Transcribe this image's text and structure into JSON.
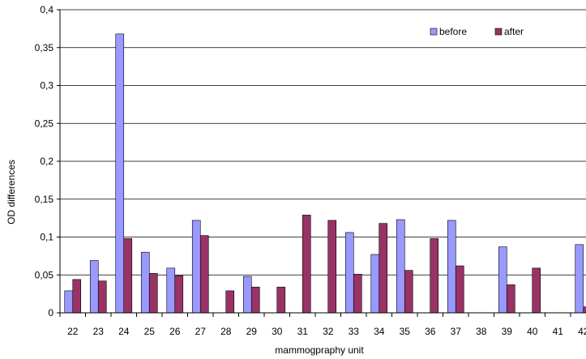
{
  "chart_data": {
    "type": "bar",
    "title": "",
    "xlabel": "mammogpraphy unit",
    "ylabel": "OD differences",
    "ylim": [
      0,
      0.4
    ],
    "yticks": [
      0,
      0.05,
      0.1,
      0.15,
      0.2,
      0.25,
      0.3,
      0.35,
      0.4
    ],
    "ytick_labels": [
      "0",
      "0,05",
      "0,1",
      "0,15",
      "0,2",
      "0,25",
      "0,3",
      "0,35",
      "0,4"
    ],
    "grid": true,
    "legend_position": "top-right",
    "categories": [
      "22",
      "23",
      "24",
      "25",
      "26",
      "27",
      "28",
      "29",
      "30",
      "31",
      "32",
      "33",
      "34",
      "35",
      "36",
      "37",
      "38",
      "39",
      "40",
      "41",
      "42"
    ],
    "series": [
      {
        "name": "before",
        "color": "#9999ff",
        "values": [
          0.029,
          0.069,
          0.368,
          0.08,
          0.059,
          0.122,
          null,
          0.048,
          null,
          null,
          null,
          0.106,
          0.077,
          0.123,
          null,
          0.122,
          null,
          0.087,
          null,
          null,
          0.09
        ]
      },
      {
        "name": "after",
        "color": "#993366",
        "values": [
          0.044,
          0.042,
          0.098,
          0.052,
          0.049,
          0.102,
          0.029,
          0.034,
          0.034,
          0.129,
          0.122,
          0.051,
          0.118,
          0.056,
          0.098,
          0.062,
          null,
          0.037,
          0.059,
          null,
          0.008
        ]
      }
    ]
  }
}
